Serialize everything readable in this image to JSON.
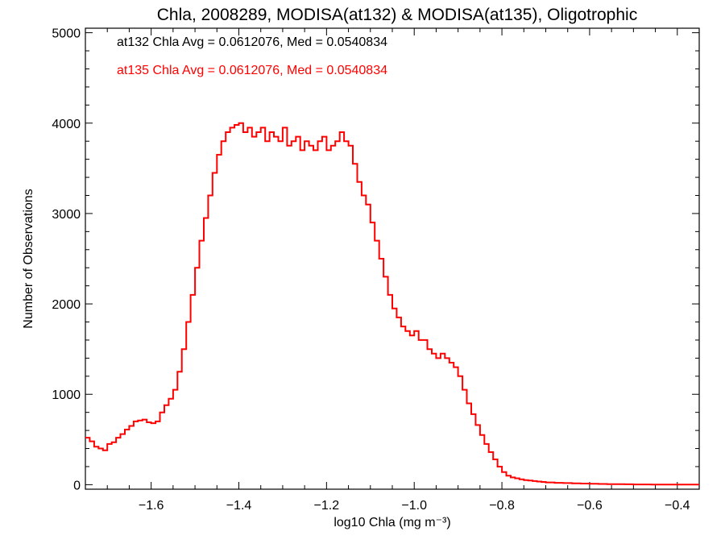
{
  "chart_data": {
    "type": "line",
    "title": "Chla, 2008289, MODISA(at132) & MODISA(at135), Oligotrophic",
    "xlabel": "log10 Chla (mg m⁻³)",
    "ylabel": "Number of Observations",
    "xlim": [
      -1.75,
      -0.35
    ],
    "ylim": [
      -50,
      5050
    ],
    "xticks": [
      -1.6,
      -1.4,
      -1.2,
      -1.0,
      -0.8,
      -0.6,
      -0.4
    ],
    "xtick_labels": [
      "−1.6",
      "−1.4",
      "−1.2",
      "−1.0",
      "−0.8",
      "−0.6",
      "−0.4"
    ],
    "yticks": [
      0,
      1000,
      2000,
      3000,
      4000,
      5000
    ],
    "ytick_labels": [
      "0",
      "1000",
      "2000",
      "3000",
      "4000",
      "5000"
    ],
    "grid": false,
    "step": true,
    "annotations": [
      {
        "text": "at132 Chla Avg = 0.0612076, Med = 0.0540834",
        "color": "#000000"
      },
      {
        "text": "at135 Chla Avg = 0.0612076, Med = 0.0540834",
        "color": "#ff0000"
      }
    ],
    "series": [
      {
        "color": "#ff0000",
        "x": [
          -1.75,
          -1.74,
          -1.73,
          -1.72,
          -1.71,
          -1.7,
          -1.69,
          -1.68,
          -1.67,
          -1.66,
          -1.65,
          -1.64,
          -1.63,
          -1.62,
          -1.61,
          -1.6,
          -1.59,
          -1.58,
          -1.57,
          -1.56,
          -1.55,
          -1.54,
          -1.53,
          -1.52,
          -1.51,
          -1.5,
          -1.49,
          -1.48,
          -1.47,
          -1.46,
          -1.45,
          -1.44,
          -1.43,
          -1.42,
          -1.41,
          -1.4,
          -1.39,
          -1.38,
          -1.37,
          -1.36,
          -1.35,
          -1.34,
          -1.33,
          -1.32,
          -1.31,
          -1.3,
          -1.29,
          -1.28,
          -1.27,
          -1.26,
          -1.25,
          -1.24,
          -1.23,
          -1.22,
          -1.21,
          -1.2,
          -1.19,
          -1.18,
          -1.17,
          -1.16,
          -1.15,
          -1.14,
          -1.13,
          -1.12,
          -1.11,
          -1.1,
          -1.09,
          -1.08,
          -1.07,
          -1.06,
          -1.05,
          -1.04,
          -1.03,
          -1.02,
          -1.01,
          -1.0,
          -0.99,
          -0.98,
          -0.97,
          -0.96,
          -0.95,
          -0.94,
          -0.93,
          -0.92,
          -0.91,
          -0.9,
          -0.89,
          -0.88,
          -0.87,
          -0.86,
          -0.85,
          -0.84,
          -0.83,
          -0.82,
          -0.81,
          -0.8,
          -0.79,
          -0.78,
          -0.77,
          -0.76,
          -0.75,
          -0.74,
          -0.73,
          -0.72,
          -0.71,
          -0.7,
          -0.68,
          -0.66,
          -0.64,
          -0.62,
          -0.6,
          -0.58,
          -0.56,
          -0.54,
          -0.52,
          -0.5,
          -0.48,
          -0.46,
          -0.44,
          -0.42,
          -0.4,
          -0.38,
          -0.36,
          -0.35
        ],
        "y": [
          520,
          480,
          420,
          400,
          380,
          450,
          470,
          520,
          560,
          610,
          650,
          700,
          710,
          720,
          690,
          680,
          700,
          800,
          880,
          950,
          1050,
          1250,
          1500,
          1800,
          2100,
          2400,
          2700,
          2950,
          3200,
          3450,
          3650,
          3800,
          3900,
          3950,
          3980,
          4000,
          3900,
          3950,
          3850,
          3900,
          3950,
          3800,
          3900,
          3850,
          3800,
          3950,
          3750,
          3800,
          3850,
          3700,
          3800,
          3750,
          3700,
          3800,
          3850,
          3700,
          3750,
          3800,
          3900,
          3800,
          3750,
          3550,
          3350,
          3200,
          3100,
          2900,
          2700,
          2500,
          2300,
          2100,
          1950,
          1850,
          1750,
          1700,
          1650,
          1700,
          1600,
          1600,
          1500,
          1450,
          1400,
          1450,
          1400,
          1350,
          1300,
          1200,
          1050,
          900,
          780,
          660,
          550,
          450,
          360,
          280,
          200,
          140,
          100,
          80,
          70,
          60,
          50,
          45,
          40,
          35,
          30,
          25,
          20,
          18,
          15,
          12,
          10,
          8,
          6,
          5,
          4,
          3,
          3,
          2,
          2,
          2,
          2,
          1,
          1,
          1
        ]
      }
    ]
  }
}
